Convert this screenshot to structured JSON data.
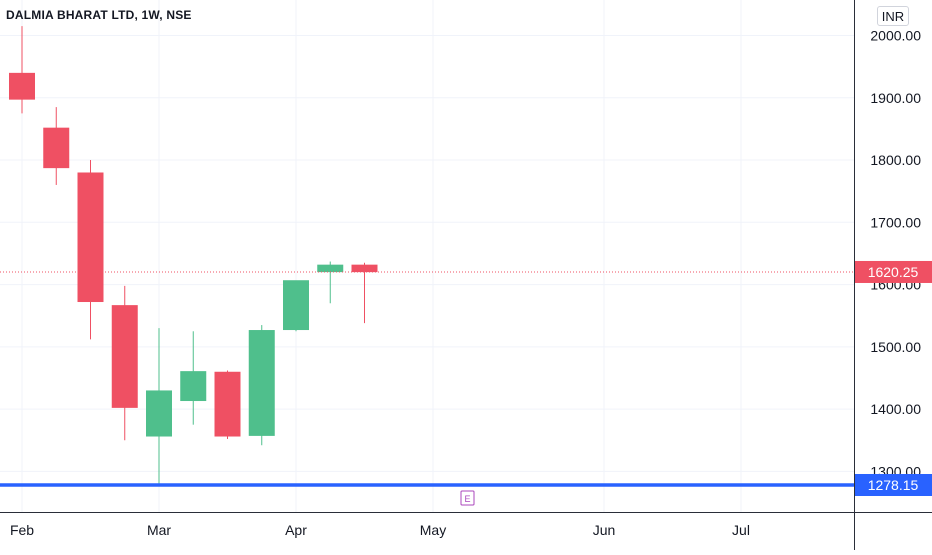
{
  "header": {
    "symbol_title": "DALMIA BHARAT LTD, 1W, NSE",
    "currency": "INR"
  },
  "colors": {
    "up": "#4fbf8c",
    "down": "#ef5063",
    "grid": "#f0f3fa",
    "axis_text": "#131722",
    "hline": "#2962ff",
    "last_price": "#ef5063"
  },
  "markers": {
    "earnings_label": "E"
  },
  "chart_data": {
    "type": "candlestick",
    "title": "DALMIA BHARAT LTD, 1W, NSE",
    "y_axis_ticks": [
      "1300.00",
      "1400.00",
      "1500.00",
      "1600.00",
      "1700.00",
      "1800.00",
      "1900.00",
      "2000.00"
    ],
    "x_axis_ticks": [
      "Feb",
      "Mar",
      "Apr",
      "May",
      "Jun",
      "Jul"
    ],
    "ylim": [
      1255,
      2060
    ],
    "grid": true,
    "candles": [
      {
        "open": 1940,
        "high": 2015,
        "low": 1875,
        "close": 1897
      },
      {
        "open": 1852,
        "high": 1885,
        "low": 1760,
        "close": 1787
      },
      {
        "open": 1780,
        "high": 1800,
        "low": 1512,
        "close": 1572
      },
      {
        "open": 1567,
        "high": 1598,
        "low": 1350,
        "close": 1402
      },
      {
        "open": 1356,
        "high": 1530,
        "low": 1278,
        "close": 1430
      },
      {
        "open": 1413,
        "high": 1525,
        "low": 1375,
        "close": 1461
      },
      {
        "open": 1460,
        "high": 1462,
        "low": 1352,
        "close": 1356
      },
      {
        "open": 1357,
        "high": 1535,
        "low": 1342,
        "close": 1527
      },
      {
        "open": 1527,
        "high": 1605,
        "low": 1525,
        "close": 1607
      },
      {
        "open": 1620,
        "high": 1637,
        "low": 1570,
        "close": 1632
      },
      {
        "open": 1632,
        "high": 1635,
        "low": 1538,
        "close": 1620
      }
    ],
    "last_price": {
      "value": 1620.25,
      "label": "1620.25"
    },
    "horizontal_line": {
      "value": 1278.15,
      "label": "1278.15"
    }
  }
}
